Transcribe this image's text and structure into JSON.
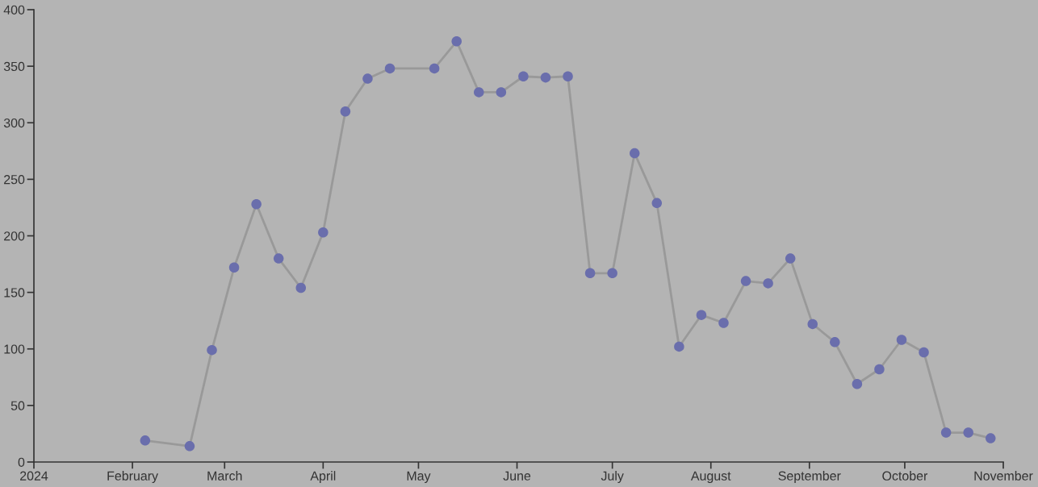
{
  "chart_data": {
    "type": "line",
    "x": [
      "2024-02-05",
      "2024-02-19",
      "2024-02-26",
      "2024-03-04",
      "2024-03-11",
      "2024-03-18",
      "2024-03-25",
      "2024-04-01",
      "2024-04-08",
      "2024-04-15",
      "2024-04-22",
      "2024-05-06",
      "2024-05-13",
      "2024-05-20",
      "2024-05-27",
      "2024-06-03",
      "2024-06-10",
      "2024-06-17",
      "2024-06-24",
      "2024-07-01",
      "2024-07-08",
      "2024-07-15",
      "2024-07-22",
      "2024-07-29",
      "2024-08-05",
      "2024-08-12",
      "2024-08-19",
      "2024-08-26",
      "2024-09-02",
      "2024-09-09",
      "2024-09-16",
      "2024-09-23",
      "2024-09-30",
      "2024-10-07",
      "2024-10-14",
      "2024-10-21",
      "2024-10-28"
    ],
    "series": [
      {
        "color": "#6a6eac",
        "values": [
          19,
          14,
          99,
          172,
          228,
          180,
          154,
          203,
          310,
          339,
          348,
          348,
          372,
          327,
          327,
          341,
          340,
          341,
          167,
          167,
          273,
          229,
          102,
          130,
          123,
          160,
          158,
          180,
          122,
          106,
          69,
          82,
          108,
          97,
          26,
          26,
          21
        ]
      }
    ],
    "xlim": [
      "2024-01-01",
      "2024-11-01"
    ],
    "xticks": [
      {
        "value": "2024-01-01",
        "label": "2024"
      },
      {
        "value": "2024-02-01",
        "label": "February"
      },
      {
        "value": "2024-03-01",
        "label": "March"
      },
      {
        "value": "2024-04-01",
        "label": "April"
      },
      {
        "value": "2024-05-01",
        "label": "May"
      },
      {
        "value": "2024-06-01",
        "label": "June"
      },
      {
        "value": "2024-07-01",
        "label": "July"
      },
      {
        "value": "2024-08-01",
        "label": "August"
      },
      {
        "value": "2024-09-01",
        "label": "September"
      },
      {
        "value": "2024-10-01",
        "label": "October"
      },
      {
        "value": "2024-11-01",
        "label": "November"
      }
    ],
    "ylim": [
      0,
      400
    ],
    "yticks": [
      0,
      50,
      100,
      150,
      200,
      250,
      300,
      350,
      400
    ],
    "marker": "circle",
    "line_style": "solid"
  }
}
